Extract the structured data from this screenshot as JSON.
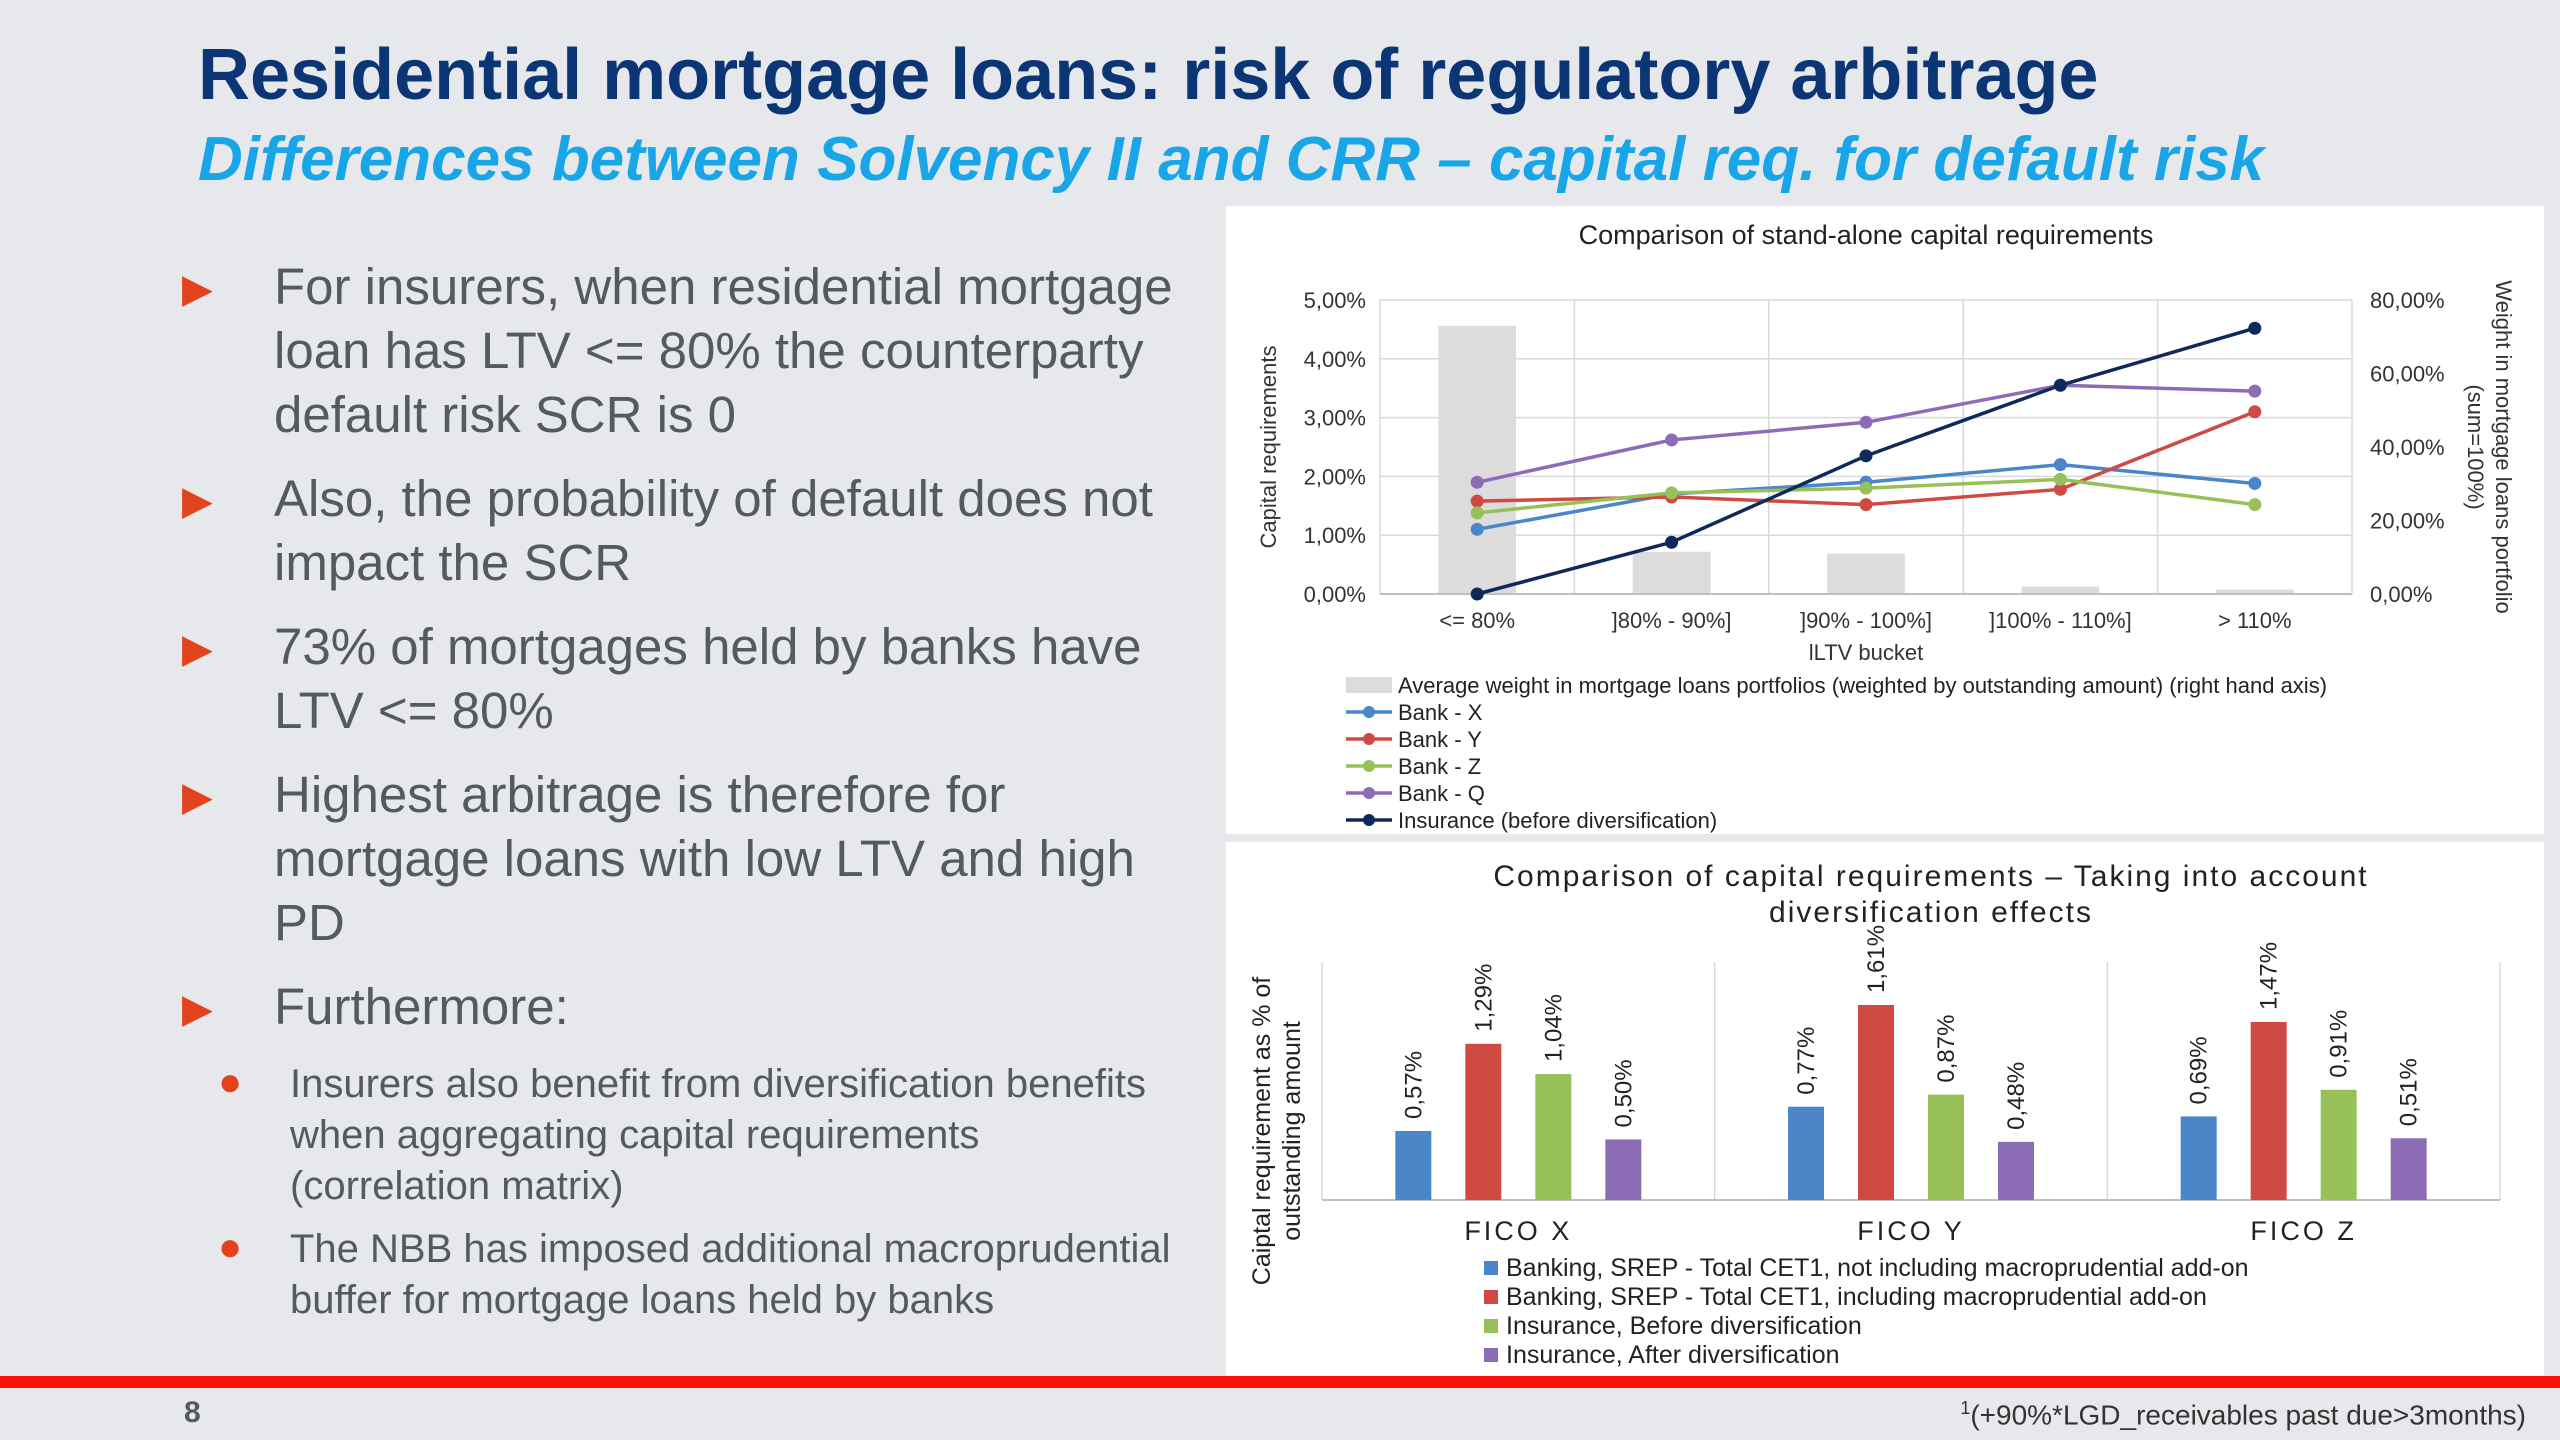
{
  "slide": {
    "title": "Residential mortgage loans: risk of regulatory arbitrage",
    "subtitle": "Differences between Solvency II and CRR – capital req. for default risk",
    "bullets": [
      "For insurers, when residential mortgage loan has LTV <= 80% the counterparty default risk SCR is 0",
      "Also, the probability of default does not impact the SCR",
      "73% of mortgages held by banks have LTV <= 80%",
      "Highest arbitrage is therefore for mortgage loans with low LTV and high PD",
      "Furthermore:"
    ],
    "sub_bullets": [
      "Insurers also benefit from diversification benefits when aggregating capital requirements (correlation matrix)",
      "The NBB has imposed additional macroprudential buffer for mortgage loans held by banks"
    ],
    "page_number": "8",
    "footnote_mark": "1",
    "footnote": "(+90%*LGD_receivables past due>3months)"
  },
  "icons": {
    "bullet": "triangle-right-icon",
    "sub_bullet": "dot-icon"
  },
  "colors": {
    "title": "#0b3575",
    "subtitle": "#19a6e8",
    "accent": "#e2431c",
    "bank_x": "#4a86c8",
    "bank_y": "#cf4a43",
    "bank_z": "#97c158",
    "bank_q": "#8c6cb4",
    "insurance": "#0f2a5a",
    "weight_bar": "#dcdcdc"
  },
  "chart_data": [
    {
      "type": "line",
      "title": "Comparison of stand-alone capital requirements",
      "xlabel": "lLTV bucket",
      "ylabel": "Capital requirements",
      "y2label_lines": [
        "Weight in mortgage loans portfolio",
        "(sum=100%)"
      ],
      "categories": [
        "<= 80%",
        "]80% - 90%]",
        "]90% - 100%]",
        "]100% - 110%]",
        "> 110%"
      ],
      "ylim": [
        0,
        5
      ],
      "y_ticks": [
        "0,00%",
        "1,00%",
        "2,00%",
        "3,00%",
        "4,00%",
        "5,00%"
      ],
      "y2lim": [
        0,
        80
      ],
      "y2_ticks": [
        "0,00%",
        "20,00%",
        "40,00%",
        "60,00%",
        "80,00%"
      ],
      "bars": {
        "name": "Average weight in mortgage loans portfolios (weighted by outstanding amount) (right hand axis)",
        "values": [
          73,
          11.5,
          11,
          2,
          1.2
        ]
      },
      "series": [
        {
          "name": "Bank - X",
          "values": [
            1.1,
            1.7,
            1.9,
            2.2,
            1.88
          ]
        },
        {
          "name": "Bank - Y",
          "values": [
            1.58,
            1.65,
            1.52,
            1.78,
            3.1
          ]
        },
        {
          "name": "Bank - Z",
          "values": [
            1.38,
            1.72,
            1.8,
            1.95,
            1.52
          ]
        },
        {
          "name": "Bank - Q",
          "values": [
            1.9,
            2.62,
            2.92,
            3.55,
            3.45
          ]
        },
        {
          "name": "Insurance (before diversification)",
          "values": [
            0,
            0.88,
            2.35,
            3.55,
            4.52
          ]
        }
      ],
      "legend_position": "bottom",
      "grid": true
    },
    {
      "type": "bar",
      "title_lines": [
        "Comparison of capital requirements – Taking into account",
        "diversification effects"
      ],
      "ylabel_lines": [
        "Caiptal requirement as % of",
        "outstanding amount"
      ],
      "categories": [
        "FICO X",
        "FICO Y",
        "FICO Z"
      ],
      "ylim": [
        0,
        1.8
      ],
      "series": [
        {
          "name": "Banking, SREP - Total CET1, not including macroprudential add-on",
          "values": [
            0.57,
            0.77,
            0.69
          ],
          "labels": [
            "0,57%",
            "0,77%",
            "0,69%"
          ]
        },
        {
          "name": "Banking, SREP - Total CET1, including macroprudential add-on",
          "values": [
            1.29,
            1.61,
            1.47
          ],
          "labels": [
            "1,29%",
            "1,61%",
            "1,47%"
          ]
        },
        {
          "name": "Insurance, Before diversification",
          "values": [
            1.04,
            0.87,
            0.91
          ],
          "labels": [
            "1,04%",
            "0,87%",
            "0,91%"
          ]
        },
        {
          "name": "Insurance, After diversification",
          "values": [
            0.5,
            0.48,
            0.51
          ],
          "labels": [
            "0,50%",
            "0,48%",
            "0,51%"
          ]
        }
      ],
      "legend_position": "bottom",
      "grid": true
    }
  ]
}
